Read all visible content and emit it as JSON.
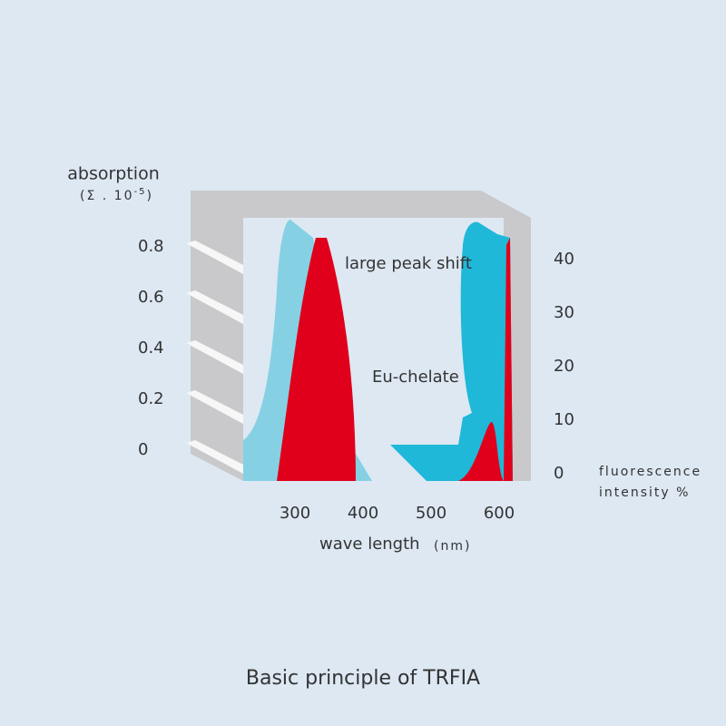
{
  "y_axis": {
    "label": "absorption",
    "unit_prefix": "(Σ . 10",
    "unit_exponent": "-5",
    "unit_suffix": ")",
    "ticks": [
      "0.8",
      "0.6",
      "0.4",
      "0.2",
      "0"
    ]
  },
  "y2_axis": {
    "label_line1": "fluorescence",
    "label_line2": "intensity %",
    "ticks": [
      "40",
      "30",
      "20",
      "10",
      "0"
    ]
  },
  "x_axis": {
    "label": "wave length",
    "unit": "(nm)",
    "ticks": [
      "300",
      "400",
      "500",
      "600"
    ]
  },
  "annotations": [
    "large peak shift",
    "Eu-chelate"
  ],
  "caption": "Basic principle of TRFIA"
}
